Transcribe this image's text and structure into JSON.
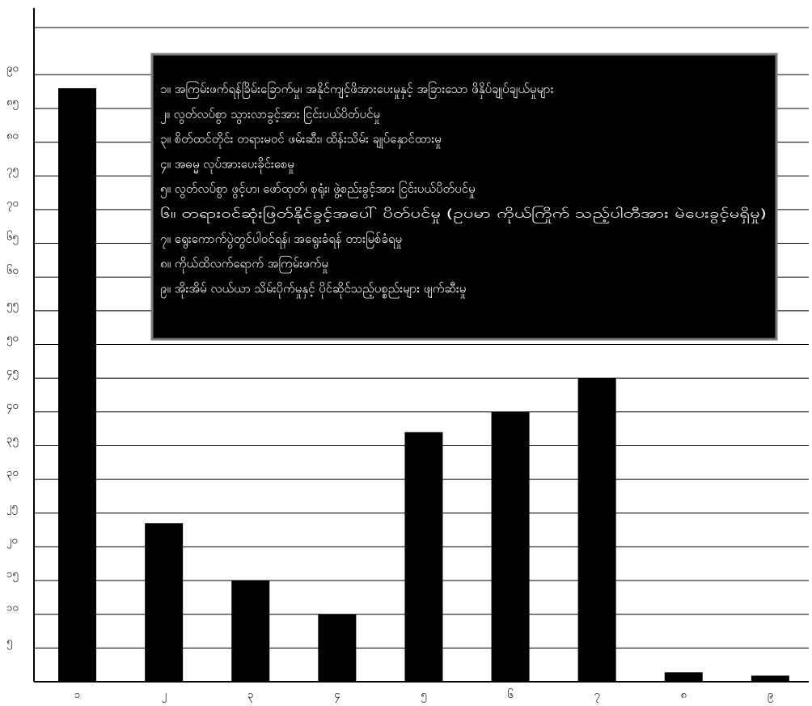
{
  "chart_data": {
    "type": "bar",
    "title": "",
    "xlabel": "",
    "ylabel": "",
    "categories": [
      "၁",
      "၂",
      "၃",
      "၄",
      "၅",
      "၆",
      "၇",
      "၈",
      "၉"
    ],
    "values": [
      88,
      23.5,
      15,
      10,
      37,
      40,
      45,
      1.4,
      0.9
    ],
    "yticks": [
      5,
      10,
      15,
      20,
      25,
      30,
      35,
      40,
      45,
      50,
      55,
      60,
      65,
      70,
      75,
      80,
      85,
      90
    ],
    "ytick_labels": [
      "၅",
      "၁၀",
      "၁၅",
      "၂၀",
      "၂၅",
      "၃၀",
      "၃၅",
      "၄၀",
      "၄၅",
      "၅၀",
      "၅၅",
      "၆၀",
      "၆၅",
      "၇၀",
      "၇၅",
      "၈၀",
      "၈၅",
      "၉၀"
    ],
    "ylim": [
      0,
      97
    ],
    "grid": true,
    "bar_color": "#000000",
    "legend": {
      "placement": "top-right",
      "background": "#000000",
      "border": "#7a7a7a",
      "text_color": "#ffffff",
      "entries": [
        "၁။ အကြမ်းဖက်ရန်ခြိမ်းခြောက်မှု၊ အနိုင်ကျင့်ဖိအားပေးမှုနှင့် အခြားသော ဖိနှိပ်ချုပ်ချယ်မှုများ",
        "၂။ လွတ်လပ်စွာ သွားလာခွင့်အား ငြင်းပယ်ပိတ်ပင်မှု",
        "၃။ စိတ်ထင်တိုင်း တရားမဝင် ဖမ်းဆီး၊ ထိန်းသိမ်း ချုပ်နှောင်ထားမှု",
        "၄။ အဓမ္မ လုပ်အားပေးခိုင်းစေမှု",
        "၅။ လွတ်လပ်စွာ ဖွင့်ဟ၊ ဖော်ထုတ်၊ စုရုံး၊ ဖွဲ့စည်းခွင့်အား ငြင်းပယ်ပိတ်ပင်မှု",
        "၆။ တရားဝင်ဆုံးဖြတ်နိုင်ခွင့်အပေါ် ပိတ်ပင်မှု (ဥပမာ ကိုယ်ကြိုက် သည့်ပါတီအား မဲပေးခွင့်မရှိမှု)",
        "၇။ ရွေးကောက်ပွဲတွင်ပါဝင်ရန်၊ အရွေးခံရန် တားမြစ်ခံရမှု",
        "၈။ ကိုယ်ထိလက်ရောက် အကြမ်းဖက်မှု",
        "၉။ အိုးအိမ် လယ်ယာ သိမ်းပိုက်မှုနှင့် ပိုင်ဆိုင်သည့်ပစ္စည်းများ ဖျက်ဆီးမှု"
      ]
    }
  }
}
